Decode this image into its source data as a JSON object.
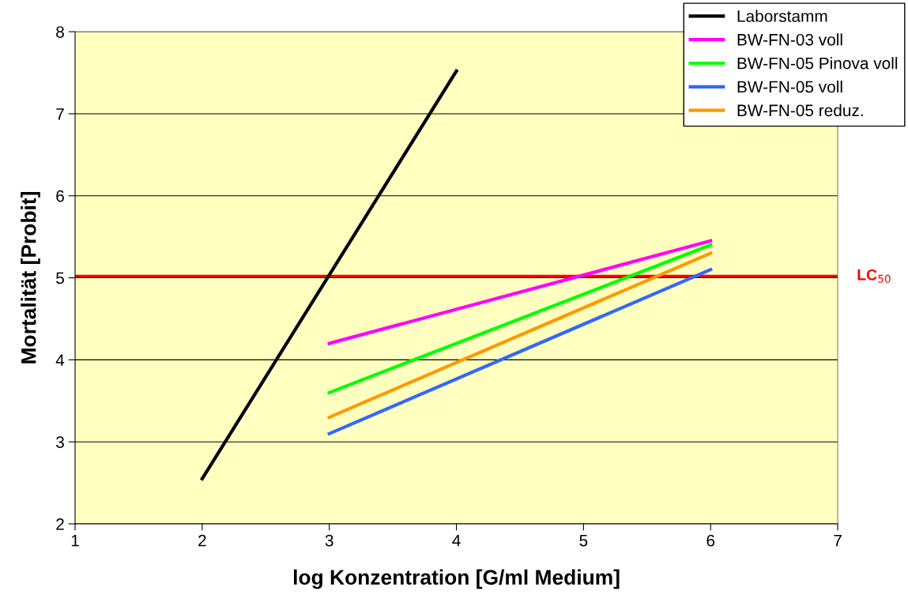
{
  "chart_data": {
    "type": "line",
    "xlabel": "log Konzentration [G/ml Medium]",
    "ylabel": "Mortalität [Probit]",
    "xlim": [
      1,
      7
    ],
    "xticks": [
      1,
      2,
      3,
      4,
      5,
      6,
      7
    ],
    "ylim": [
      2,
      8
    ],
    "yticks": [
      2,
      3,
      4,
      5,
      6,
      7,
      8
    ],
    "grid": "y",
    "legend": "top right",
    "marker": "none",
    "line_style": "solid",
    "series": [
      {
        "name": "Laborstamm",
        "color": "#000000",
        "x": [
          2,
          4
        ],
        "values": [
          2.55,
          7.52
        ]
      },
      {
        "name": "BW-FN-03 voll",
        "color": "#ff00ff",
        "x": [
          3,
          6
        ],
        "values": [
          4.2,
          5.45
        ]
      },
      {
        "name": "BW-FN-05 Pinova voll",
        "color": "#00ff00",
        "x": [
          3,
          6
        ],
        "values": [
          3.6,
          5.4
        ]
      },
      {
        "name": "BW-FN-05 voll",
        "color": "#3366ff",
        "x": [
          3,
          6
        ],
        "values": [
          3.1,
          5.1
        ]
      },
      {
        "name": "BW-FN-05 reduz.",
        "color": "#ff9900",
        "x": [
          3,
          6
        ],
        "values": [
          3.3,
          5.3
        ]
      }
    ],
    "ref_lines": [
      {
        "axis": "y",
        "value": 5.02,
        "label": "LC$_{50}$",
        "color": "#ff0000",
        "line_style": "solid"
      }
    ]
  }
}
